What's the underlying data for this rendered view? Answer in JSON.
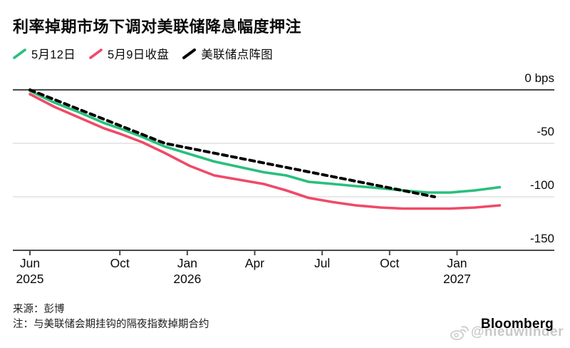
{
  "title": "利率掉期市场下调对美联储降息幅度押注",
  "legend": [
    {
      "label": "5月12日",
      "color": "#29bf7d",
      "style": "solid"
    },
    {
      "label": "5月9日收盘",
      "color": "#ef4a68",
      "style": "solid"
    },
    {
      "label": "美联储点阵图",
      "color": "#000000",
      "style": "dashed"
    }
  ],
  "chart_data": {
    "type": "line",
    "title": "利率掉期市场下调对美联储降息幅度押注",
    "x_unit": "months since Jun 2025",
    "y_unit": "bps",
    "ylim": [
      -150,
      0
    ],
    "grid": "horizontal",
    "legend_position": "top-left",
    "y_ticks": [
      {
        "label": "0 bps",
        "value": 0
      },
      {
        "label": "-50",
        "value": -50
      },
      {
        "label": "-100",
        "value": -100
      },
      {
        "label": "-150",
        "value": -150
      }
    ],
    "x_ticks": [
      {
        "label": "Jun",
        "year": "2025",
        "month": 0
      },
      {
        "label": "Oct",
        "month": 4
      },
      {
        "label": "Jan",
        "year": "2026",
        "month": 7
      },
      {
        "label": "Apr",
        "month": 10
      },
      {
        "label": "Jul",
        "month": 13
      },
      {
        "label": "Oct",
        "month": 16
      },
      {
        "label": "Jan",
        "year": "2027",
        "month": 19
      }
    ],
    "series": [
      {
        "name": "5月9日收盘",
        "color": "#ef4a68",
        "dash": null,
        "width": 3.6,
        "points": [
          [
            0,
            -4
          ],
          [
            1.1,
            -16
          ],
          [
            2.2,
            -26
          ],
          [
            3.3,
            -36
          ],
          [
            4,
            -41
          ],
          [
            5,
            -49
          ],
          [
            6,
            -59
          ],
          [
            7.1,
            -71
          ],
          [
            8.2,
            -80
          ],
          [
            9.3,
            -84
          ],
          [
            10.4,
            -88
          ],
          [
            11.4,
            -94
          ],
          [
            12.4,
            -101
          ],
          [
            13.5,
            -105
          ],
          [
            14.5,
            -108
          ],
          [
            15.6,
            -110
          ],
          [
            16.6,
            -111
          ],
          [
            17.7,
            -111
          ],
          [
            18.7,
            -111
          ],
          [
            19.8,
            -110
          ],
          [
            20.9,
            -108
          ]
        ]
      },
      {
        "name": "5月12日",
        "color": "#29bf7d",
        "dash": null,
        "width": 3.6,
        "points": [
          [
            0,
            -1
          ],
          [
            1.1,
            -12
          ],
          [
            2.2,
            -21
          ],
          [
            3.3,
            -31
          ],
          [
            4,
            -36
          ],
          [
            5,
            -44
          ],
          [
            6,
            -53
          ],
          [
            7.1,
            -60
          ],
          [
            8.2,
            -67
          ],
          [
            9.3,
            -72
          ],
          [
            10.4,
            -77
          ],
          [
            11.4,
            -80
          ],
          [
            12.4,
            -86
          ],
          [
            13.5,
            -88
          ],
          [
            14.5,
            -90
          ],
          [
            15.6,
            -92
          ],
          [
            16.6,
            -94
          ],
          [
            17.7,
            -96
          ],
          [
            18.7,
            -96
          ],
          [
            19.8,
            -94
          ],
          [
            20.9,
            -91
          ]
        ]
      },
      {
        "name": "美联储点阵图",
        "color": "#000000",
        "dash": "7 6",
        "width": 4,
        "points": [
          [
            0,
            0
          ],
          [
            6,
            -50
          ],
          [
            18,
            -100
          ]
        ]
      }
    ],
    "colors": {
      "axis": "#4a4a4a",
      "grid": "#d9d9d9"
    }
  },
  "footer": {
    "source": "来源：彭博",
    "note": "注：与美联储会期挂钩的隔夜指数掉期合约"
  },
  "branding": {
    "logo": "Bloomberg",
    "watermark": "@nieuwilnder",
    "watermark_icon": "weibo-icon"
  }
}
